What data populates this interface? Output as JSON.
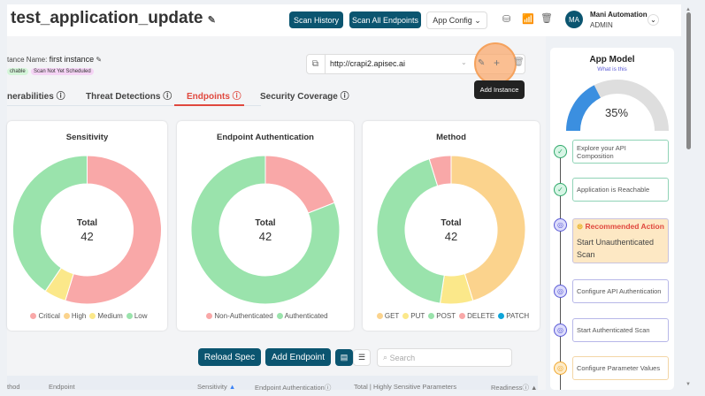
{
  "header": {
    "title": "test_application_update",
    "scan_history": "Scan History",
    "scan_all": "Scan All Endpoints",
    "app_config": "App Config",
    "user_name": "Mani Automation",
    "user_role": "ADMIN",
    "avatar": "MA"
  },
  "instance": {
    "label": "tance Name:",
    "name": "first instance",
    "badge_reachable": "chable",
    "badge_scan": "Scan Not Yet Scheduled",
    "url": "http://crapi2.apisec.ai",
    "tooltip": "Add Instance"
  },
  "tabs": [
    "nerabilities",
    "Threat Detections",
    "Endpoints",
    "Security Coverage"
  ],
  "active_tab": "Endpoints",
  "charts_text": {
    "total": "Total",
    "total_value": "42"
  },
  "chart_data": [
    {
      "type": "pie",
      "title": "Sensitivity",
      "categories": [
        "Critical",
        "High",
        "Medium",
        "Low"
      ],
      "values": [
        23,
        0,
        2,
        17
      ],
      "colors": [
        "#f9a8a8",
        "#fbd38d",
        "#fbe88a",
        "#9ae3ac"
      ]
    },
    {
      "type": "pie",
      "title": "Endpoint Authentication",
      "categories": [
        "Non-Authenticated",
        "Authenticated"
      ],
      "values": [
        8,
        34
      ],
      "colors": [
        "#f9a8a8",
        "#9ae3ac"
      ]
    },
    {
      "type": "pie",
      "title": "Method",
      "categories": [
        "GET",
        "PUT",
        "POST",
        "DELETE",
        "PATCH"
      ],
      "values": [
        19,
        3,
        18,
        2,
        0
      ],
      "colors": [
        "#fbd38d",
        "#fbe88a",
        "#9ae3ac",
        "#f9a8a8",
        "#0ea5d9"
      ]
    }
  ],
  "toolbar": {
    "reload": "Reload Spec",
    "add_endpoint": "Add Endpoint",
    "search_placeholder": "Search"
  },
  "table_headers": [
    "thod",
    "Endpoint",
    "Sensitivity",
    "Endpoint Authentication",
    "Total | Highly Sensitive Parameters",
    "Readiness"
  ],
  "app_model": {
    "title": "App Model",
    "link": "What is this",
    "progress": 35,
    "progress_label": "35%",
    "steps": [
      {
        "label": "Explore your API Composition",
        "status": "done"
      },
      {
        "label": "Application is Reachable",
        "status": "done"
      },
      {
        "label": "Start Unauthenticated Scan",
        "status": "recommended",
        "heading": "Recommended Action"
      },
      {
        "label": "Configure API Authentication",
        "status": "pending"
      },
      {
        "label": "Start Authenticated Scan",
        "status": "pending"
      },
      {
        "label": "Configure Parameter Values",
        "status": "warning"
      }
    ]
  },
  "colors": {
    "primary": "#0b5570",
    "accent": "#e0483e",
    "gauge": "#3b8fe0"
  }
}
